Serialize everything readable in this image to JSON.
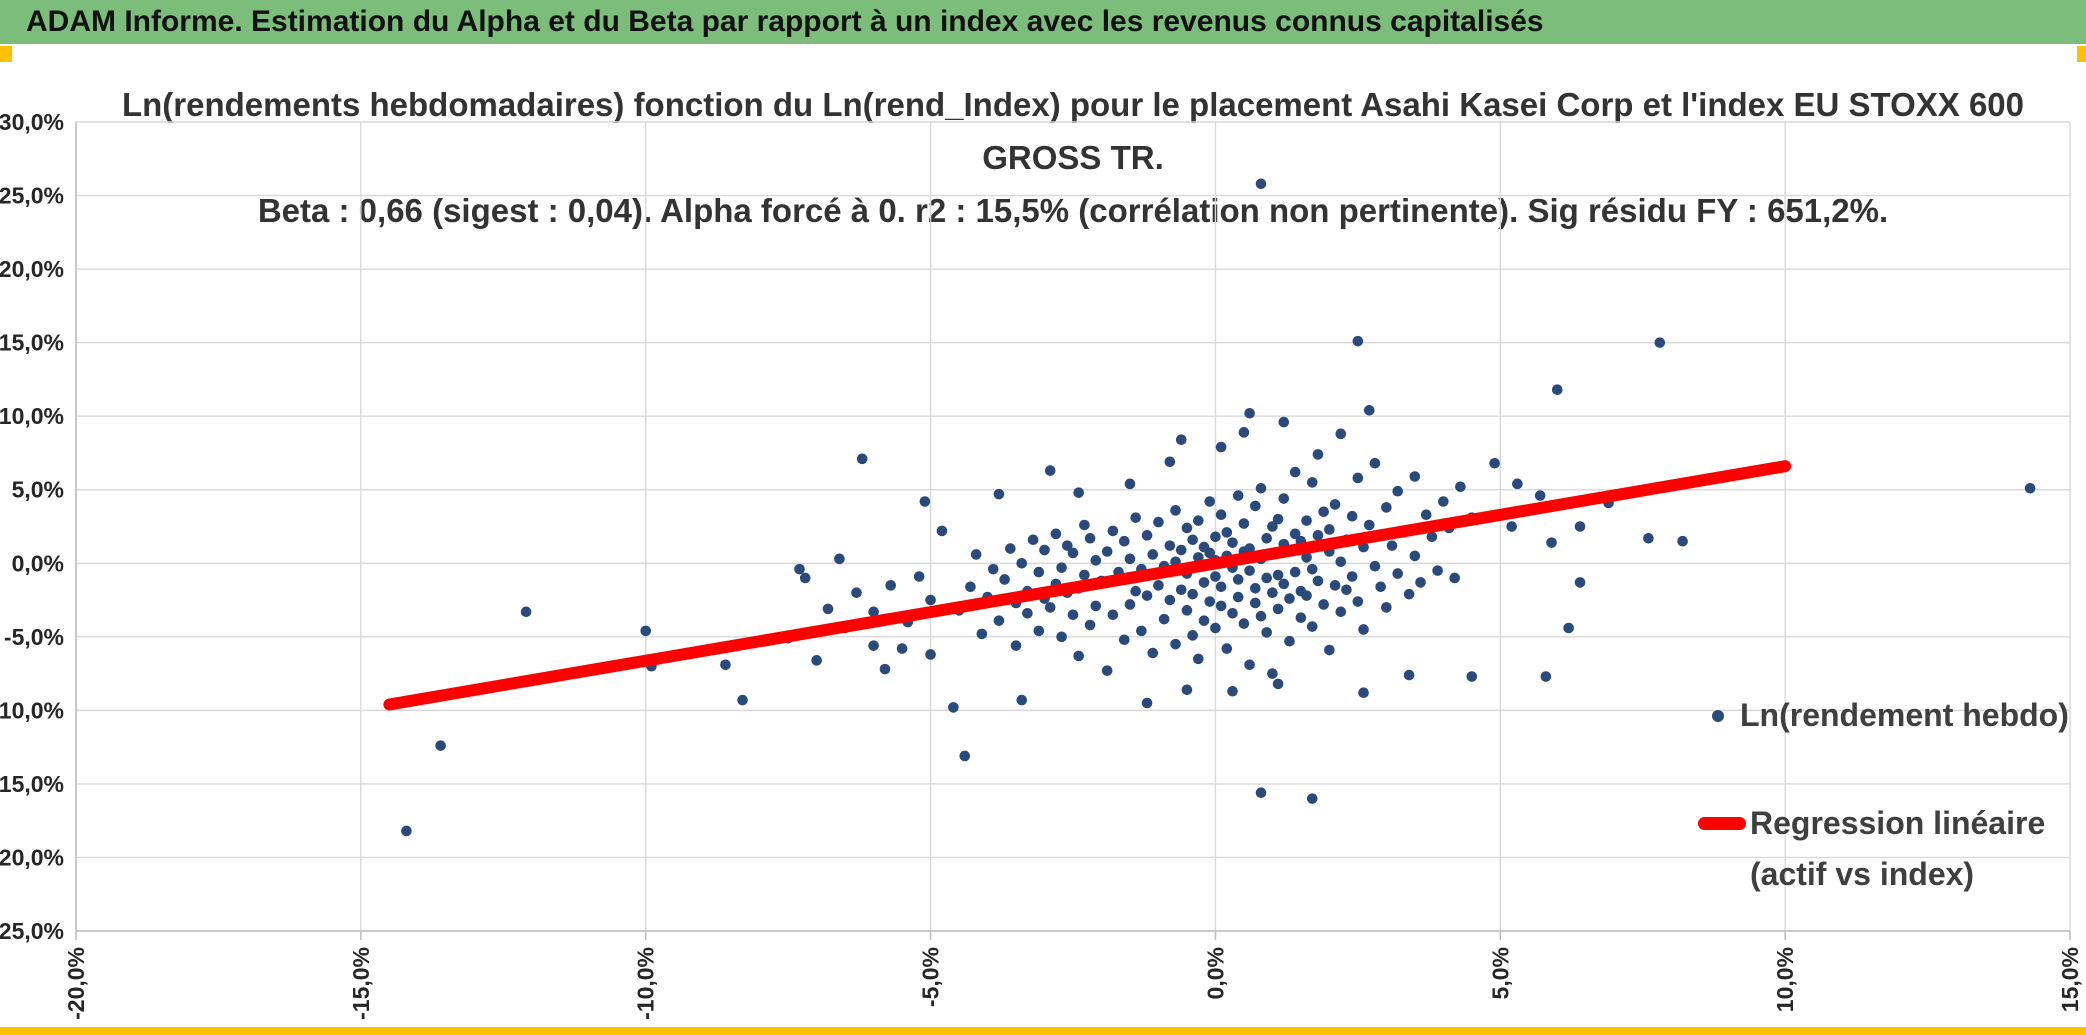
{
  "window": {
    "title": "ADAM Informe. Estimation du Alpha et du Beta par rapport à un index avec les revenus connus capitalisés"
  },
  "chart": {
    "title_line1": "Ln(rendements hebdomadaires) fonction du Ln(rend_Index) pour le placement Asahi Kasei Corp et l'index EU STOXX 600 GROSS TR.",
    "title_line2": "Beta : 0,66 (sigest : 0,04). Alpha forcé à 0. r2 : 15,5% (corrélation non pertinente). Sig résidu FY : 651,2%.",
    "legend": {
      "scatter_label": "Ln(rendement hebdo)",
      "line_label_1": "Regression linéaire",
      "line_label_2": "(actif vs index)"
    },
    "colors": {
      "header_bg": "#7CBD7C",
      "accent_orange": "#FFC000",
      "point": "#2A4A7B",
      "line": "#FF0000",
      "grid": "#D9D9D9",
      "axis_line": "#BFBFBF",
      "axis_text": "#262626"
    }
  },
  "chart_data": {
    "type": "scatter",
    "title": "Ln(rendements hebdomadaires) fonction du Ln(rend_Index) pour le placement Asahi Kasei Corp et l'index EU STOXX 600 GROSS TR. Beta : 0,66 (sigest : 0,04). Alpha forcé à 0. r2 : 15,5% (corrélation non pertinente). Sig résidu FY : 651,2%.",
    "xlabel": "Ln(rend_Index)",
    "ylabel": "Ln(rendements hebdomadaires)",
    "xlim": [
      -20,
      15
    ],
    "ylim": [
      -25,
      30
    ],
    "grid": true,
    "legend_position": "right-inside",
    "x_ticks": [
      {
        "v": -20,
        "label": "-20,0%"
      },
      {
        "v": -15,
        "label": "-15,0%"
      },
      {
        "v": -10,
        "label": "-10,0%"
      },
      {
        "v": -5,
        "label": "-5,0%"
      },
      {
        "v": 0,
        "label": "0,0%"
      },
      {
        "v": 5,
        "label": "5,0%"
      },
      {
        "v": 10,
        "label": "10,0%"
      },
      {
        "v": 15,
        "label": "15,0%"
      }
    ],
    "y_ticks": [
      {
        "v": 30,
        "label": "30,0%"
      },
      {
        "v": 25,
        "label": "25,0%"
      },
      {
        "v": 20,
        "label": "20,0%"
      },
      {
        "v": 15,
        "label": "15,0%"
      },
      {
        "v": 10,
        "label": "10,0%"
      },
      {
        "v": 5,
        "label": "5,0%"
      },
      {
        "v": 0,
        "label": "0,0%"
      },
      {
        "v": -5,
        "label": "-5,0%"
      },
      {
        "v": -10,
        "label": "-10,0%"
      },
      {
        "v": -15,
        "label": "-15,0%"
      },
      {
        "v": -20,
        "label": "-20,0%"
      },
      {
        "v": -25,
        "label": "-25,0%"
      }
    ],
    "stats": {
      "beta": "0,66",
      "sigest": "0,04",
      "alpha_force": "0",
      "r2": "15,5%",
      "sig_residu_FY": "651,2%"
    },
    "series": [
      {
        "name": "Ln(rendement hebdo)",
        "type": "scatter",
        "points": [
          [
            -2.0,
            -1.2
          ],
          [
            -1.9,
            0.8
          ],
          [
            -1.8,
            -3.5
          ],
          [
            -1.8,
            2.2
          ],
          [
            -1.7,
            -0.6
          ],
          [
            -1.6,
            -5.2
          ],
          [
            -1.6,
            1.5
          ],
          [
            -1.5,
            -2.8
          ],
          [
            -1.5,
            0.3
          ],
          [
            -1.4,
            -1.9
          ],
          [
            -1.4,
            3.1
          ],
          [
            -1.3,
            -0.4
          ],
          [
            -1.3,
            -4.6
          ],
          [
            -1.2,
            1.9
          ],
          [
            -1.2,
            -2.2
          ],
          [
            -1.1,
            0.6
          ],
          [
            -1.1,
            -6.1
          ],
          [
            -1.0,
            -1.5
          ],
          [
            -1.0,
            2.8
          ],
          [
            -0.9,
            -0.2
          ],
          [
            -0.9,
            -3.8
          ],
          [
            -0.8,
            1.2
          ],
          [
            -0.8,
            -2.5
          ],
          [
            -0.7,
            0.1
          ],
          [
            -0.7,
            -5.5
          ],
          [
            -0.7,
            3.6
          ],
          [
            -0.6,
            -1.8
          ],
          [
            -0.6,
            0.9
          ],
          [
            -0.5,
            -3.2
          ],
          [
            -0.5,
            2.4
          ],
          [
            -0.5,
            -0.7
          ],
          [
            -0.4,
            -4.9
          ],
          [
            -0.4,
            1.6
          ],
          [
            -0.4,
            -2.1
          ],
          [
            -0.3,
            0.4
          ],
          [
            -0.3,
            -6.5
          ],
          [
            -0.3,
            2.9
          ],
          [
            -0.2,
            -1.3
          ],
          [
            -0.2,
            1.1
          ],
          [
            -0.2,
            -3.9
          ],
          [
            -0.1,
            0.7
          ],
          [
            -0.1,
            -2.6
          ],
          [
            -0.1,
            4.2
          ],
          [
            0.0,
            -0.9
          ],
          [
            0.0,
            1.8
          ],
          [
            0.0,
            -4.4
          ],
          [
            0.0,
            0.2
          ],
          [
            0.1,
            -1.6
          ],
          [
            0.1,
            3.3
          ],
          [
            0.1,
            -2.9
          ],
          [
            0.2,
            0.5
          ],
          [
            0.2,
            -5.8
          ],
          [
            0.2,
            2.1
          ],
          [
            0.3,
            -0.3
          ],
          [
            0.3,
            -3.4
          ],
          [
            0.3,
            1.4
          ],
          [
            0.4,
            -1.1
          ],
          [
            0.4,
            4.6
          ],
          [
            0.4,
            -2.3
          ],
          [
            0.5,
            0.8
          ],
          [
            0.5,
            -4.1
          ],
          [
            0.5,
            2.7
          ],
          [
            0.6,
            -0.5
          ],
          [
            0.6,
            -6.9
          ],
          [
            0.6,
            1.0
          ],
          [
            0.7,
            -1.7
          ],
          [
            0.7,
            3.9
          ],
          [
            0.7,
            -2.7
          ],
          [
            0.8,
            0.3
          ],
          [
            0.8,
            -3.6
          ],
          [
            0.8,
            5.1
          ],
          [
            0.9,
            -1.0
          ],
          [
            0.9,
            1.7
          ],
          [
            0.9,
            -4.7
          ],
          [
            1.0,
            0.6
          ],
          [
            1.0,
            -2.0
          ],
          [
            1.0,
            2.5
          ],
          [
            1.0,
            -7.5
          ],
          [
            1.1,
            -0.8
          ],
          [
            1.1,
            3.0
          ],
          [
            1.1,
            -3.1
          ],
          [
            1.2,
            1.3
          ],
          [
            1.2,
            -1.4
          ],
          [
            1.2,
            4.4
          ],
          [
            1.3,
            -2.4
          ],
          [
            1.3,
            0.9
          ],
          [
            1.3,
            -5.3
          ],
          [
            1.4,
            2.0
          ],
          [
            1.4,
            -0.6
          ],
          [
            1.4,
            6.2
          ],
          [
            1.5,
            -1.9
          ],
          [
            1.5,
            1.5
          ],
          [
            1.5,
            -3.7
          ],
          [
            1.6,
            0.4
          ],
          [
            1.6,
            2.9
          ],
          [
            1.6,
            -2.2
          ],
          [
            1.7,
            -0.4
          ],
          [
            1.7,
            5.5
          ],
          [
            1.7,
            -4.3
          ],
          [
            1.8,
            1.9
          ],
          [
            1.8,
            -1.2
          ],
          [
            1.9,
            3.5
          ],
          [
            1.9,
            -2.8
          ],
          [
            2.0,
            0.8
          ],
          [
            2.0,
            -5.9
          ],
          [
            2.0,
            2.3
          ],
          [
            2.1,
            -1.5
          ],
          [
            2.1,
            4.0
          ],
          [
            2.2,
            0.1
          ],
          [
            2.2,
            -3.3
          ],
          [
            2.3,
            1.6
          ],
          [
            2.3,
            -1.8
          ],
          [
            2.4,
            3.2
          ],
          [
            2.4,
            -0.9
          ],
          [
            2.5,
            5.8
          ],
          [
            2.5,
            -2.6
          ],
          [
            2.6,
            1.1
          ],
          [
            2.6,
            -4.5
          ],
          [
            2.7,
            2.6
          ],
          [
            2.8,
            -0.2
          ],
          [
            2.8,
            6.8
          ],
          [
            2.9,
            -1.6
          ],
          [
            3.0,
            3.8
          ],
          [
            3.0,
            -3.0
          ],
          [
            3.1,
            1.2
          ],
          [
            3.2,
            -0.7
          ],
          [
            3.2,
            4.9
          ],
          [
            3.3,
            2.1
          ],
          [
            3.4,
            -2.1
          ],
          [
            3.5,
            5.9
          ],
          [
            3.5,
            0.5
          ],
          [
            3.6,
            -1.3
          ],
          [
            3.7,
            3.3
          ],
          [
            3.8,
            1.8
          ],
          [
            3.9,
            -0.5
          ],
          [
            4.0,
            4.2
          ],
          [
            4.1,
            2.4
          ],
          [
            4.2,
            -1.0
          ],
          [
            4.3,
            5.2
          ],
          [
            4.5,
            3.1
          ],
          [
            -2.1,
            0.2
          ],
          [
            -2.1,
            -2.9
          ],
          [
            -2.2,
            1.7
          ],
          [
            -2.2,
            -4.2
          ],
          [
            -2.3,
            -0.8
          ],
          [
            -2.3,
            2.6
          ],
          [
            -2.4,
            -1.7
          ],
          [
            -2.4,
            -6.3
          ],
          [
            -2.5,
            0.7
          ],
          [
            -2.5,
            -3.5
          ],
          [
            -2.6,
            1.2
          ],
          [
            -2.6,
            -2.0
          ],
          [
            -2.7,
            -0.3
          ],
          [
            -2.7,
            -5.0
          ],
          [
            -2.8,
            2.0
          ],
          [
            -2.8,
            -1.4
          ],
          [
            -2.9,
            -3.0
          ],
          [
            -3.0,
            0.9
          ],
          [
            -3.0,
            -2.4
          ],
          [
            -3.1,
            -0.6
          ],
          [
            -3.1,
            -4.6
          ],
          [
            -3.2,
            1.6
          ],
          [
            -3.3,
            -1.9
          ],
          [
            -3.3,
            -3.4
          ],
          [
            -3.4,
            0.0
          ],
          [
            -3.5,
            -2.7
          ],
          [
            -3.5,
            -5.6
          ],
          [
            -3.6,
            1.0
          ],
          [
            -3.7,
            -1.1
          ],
          [
            -3.8,
            -3.9
          ],
          [
            -3.9,
            -0.4
          ],
          [
            -4.0,
            -2.3
          ],
          [
            -4.1,
            -4.8
          ],
          [
            -4.2,
            0.6
          ],
          [
            -4.3,
            -1.6
          ],
          [
            -4.5,
            -3.2
          ],
          [
            -5.0,
            -2.5
          ],
          [
            -5.0,
            -6.2
          ],
          [
            -5.2,
            -0.9
          ],
          [
            -5.4,
            -4.0
          ],
          [
            -5.5,
            -5.8
          ],
          [
            -5.7,
            -1.5
          ],
          [
            -5.8,
            -7.2
          ],
          [
            -6.0,
            -3.3
          ],
          [
            -6.0,
            -5.6
          ],
          [
            -6.2,
            7.1
          ],
          [
            -6.3,
            -2.0
          ],
          [
            -6.5,
            -4.4
          ],
          [
            -6.8,
            -3.1
          ],
          [
            -7.0,
            -6.6
          ],
          [
            -7.2,
            -1.0
          ],
          [
            -7.3,
            -0.4
          ],
          [
            -7.5,
            -5.1
          ],
          [
            -8.3,
            -9.3
          ],
          [
            -8.6,
            -6.9
          ],
          [
            -9.9,
            -7.0
          ],
          [
            -10.0,
            -4.6
          ],
          [
            -12.1,
            -3.3
          ],
          [
            -13.6,
            -12.4
          ],
          [
            -14.2,
            -18.2
          ],
          [
            -6.6,
            0.3
          ],
          [
            -5.1,
            4.2
          ],
          [
            -4.8,
            2.2
          ],
          [
            -4.6,
            -9.8
          ],
          [
            -4.4,
            -13.1
          ],
          [
            -3.4,
            -9.3
          ],
          [
            0.8,
            25.8
          ],
          [
            2.5,
            15.1
          ],
          [
            7.8,
            15.0
          ],
          [
            14.3,
            5.1
          ],
          [
            6.0,
            11.8
          ],
          [
            2.7,
            10.4
          ],
          [
            0.6,
            10.2
          ],
          [
            1.2,
            9.6
          ],
          [
            0.5,
            8.9
          ],
          [
            -0.6,
            8.4
          ],
          [
            2.2,
            8.8
          ],
          [
            0.1,
            7.9
          ],
          [
            1.8,
            7.4
          ],
          [
            0.8,
            -15.6
          ],
          [
            1.7,
            -16.0
          ],
          [
            -1.2,
            -9.5
          ],
          [
            2.6,
            -8.8
          ],
          [
            3.4,
            -7.6
          ],
          [
            4.5,
            -7.7
          ],
          [
            5.8,
            -7.7
          ],
          [
            0.3,
            -8.7
          ],
          [
            1.1,
            -8.2
          ],
          [
            -0.5,
            -8.6
          ],
          [
            4.9,
            6.8
          ],
          [
            5.3,
            5.4
          ],
          [
            6.4,
            2.5
          ],
          [
            6.2,
            -4.4
          ],
          [
            8.2,
            1.5
          ],
          [
            5.2,
            2.5
          ],
          [
            5.7,
            4.6
          ],
          [
            5.9,
            1.4
          ],
          [
            6.4,
            -1.3
          ],
          [
            6.9,
            4.1
          ],
          [
            7.6,
            1.7
          ],
          [
            -0.8,
            6.9
          ],
          [
            -1.5,
            5.4
          ],
          [
            -2.4,
            4.8
          ],
          [
            -1.9,
            -7.3
          ],
          [
            -2.9,
            6.3
          ],
          [
            -3.8,
            4.7
          ]
        ]
      },
      {
        "name": "Regression linéaire (actif vs index)",
        "type": "line",
        "slope": 0.66,
        "intercept": 0,
        "points": [
          [
            -14.5,
            -9.6
          ],
          [
            10.0,
            6.6
          ]
        ]
      }
    ]
  }
}
